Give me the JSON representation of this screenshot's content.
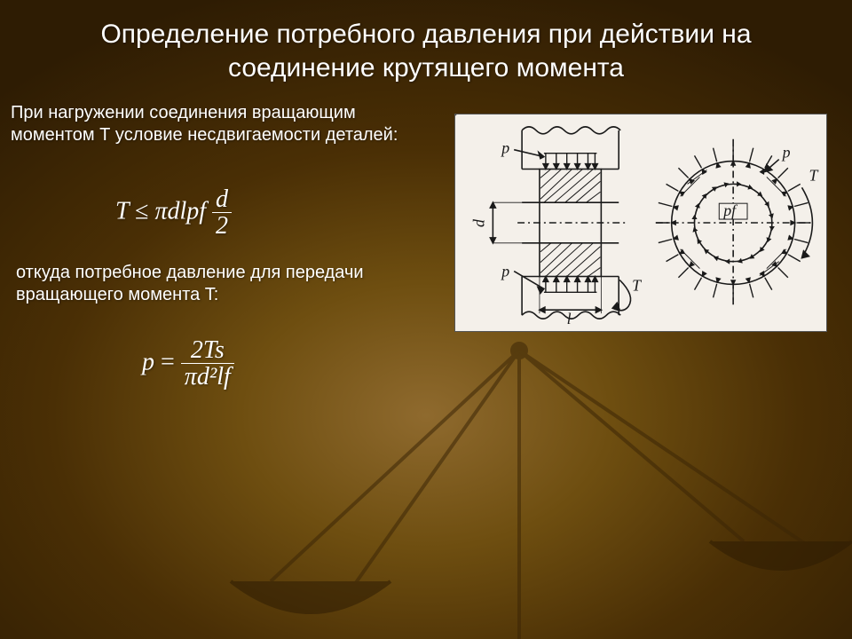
{
  "title": "Определение потребного давления при действии на соединение крутящего момента",
  "para1": "При нагружении соединения вращающим моментом Т условие несдвигаемости деталей:",
  "para2": "откуда потребное давление для передачи вращающего момента T:",
  "formula1": {
    "lhs": "T",
    "rel": "≤",
    "pre": "πdlpf",
    "num": "d",
    "den": "2"
  },
  "formula2": {
    "lhs": "p",
    "rel": "=",
    "num": "2Ts",
    "den": "πd²lf"
  },
  "diagram": {
    "bg": "#f4f0ea",
    "stroke": "#1a1a1a",
    "labels": {
      "p": "p",
      "T": "T",
      "l": "l",
      "d": "d",
      "pf": "pf"
    }
  },
  "colors": {
    "text": "#ffffff",
    "title": "#ffffff",
    "bg_inner": "#8f6a2e",
    "bg_mid": "#6e4e10",
    "bg_outer": "#2e1c03",
    "scale": "#4a2f08"
  }
}
